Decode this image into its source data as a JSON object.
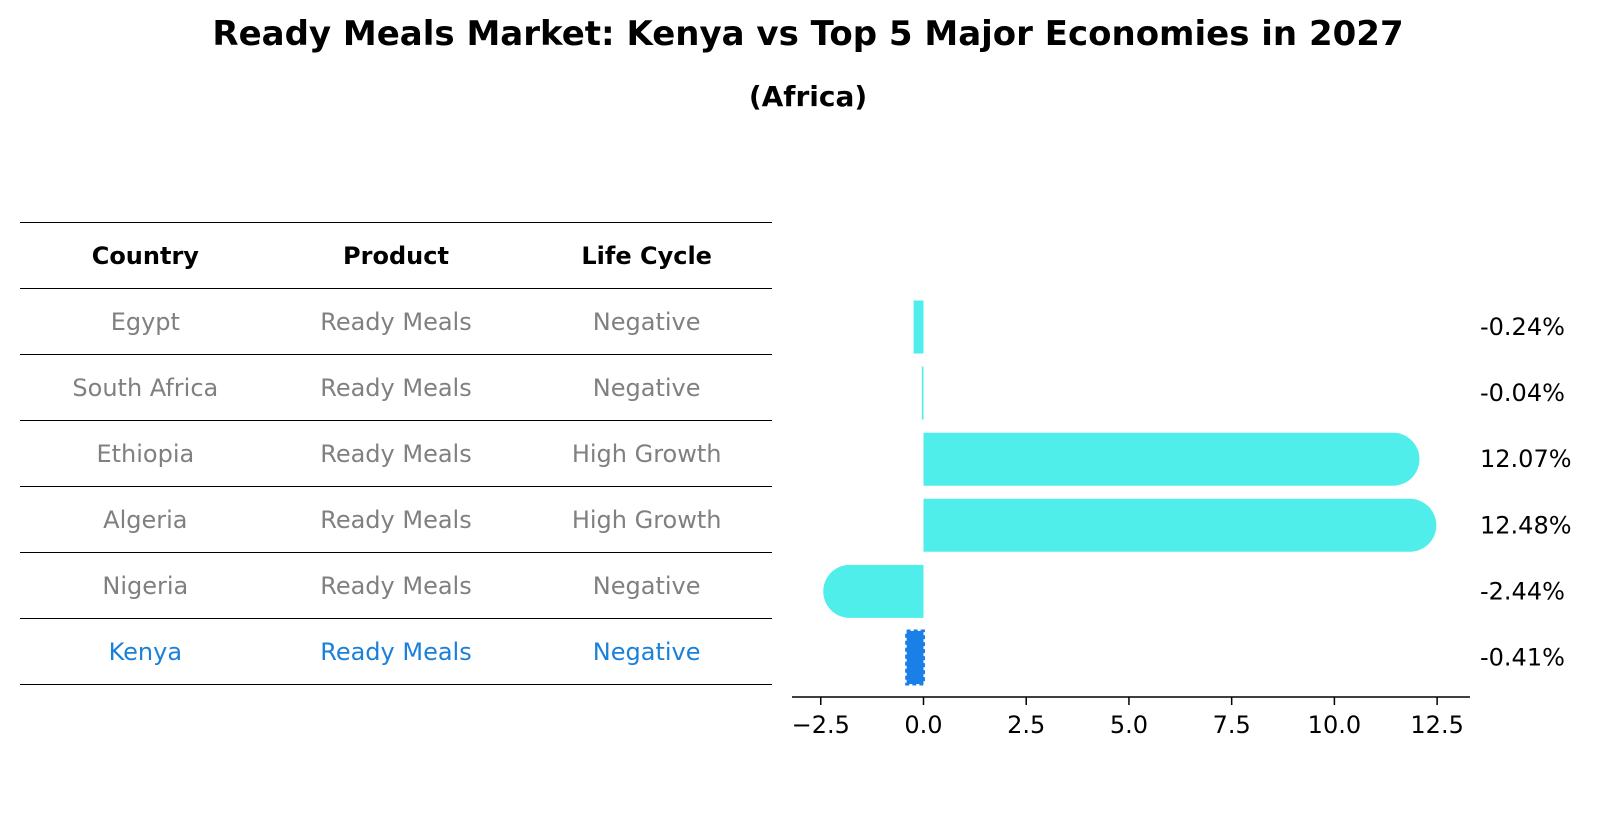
{
  "title": "Ready Meals Market: Kenya vs Top 5 Major Economies in 2027",
  "subtitle": "(Africa)",
  "table": {
    "headers": [
      "Country",
      "Product",
      "Life Cycle"
    ],
    "rows": [
      {
        "country": "Egypt",
        "product": "Ready Meals",
        "life_cycle": "Negative",
        "highlight": false
      },
      {
        "country": "South Africa",
        "product": "Ready Meals",
        "life_cycle": "Negative",
        "highlight": false
      },
      {
        "country": "Ethiopia",
        "product": "Ready Meals",
        "life_cycle": "High Growth",
        "highlight": false
      },
      {
        "country": "Algeria",
        "product": "Ready Meals",
        "life_cycle": "High Growth",
        "highlight": false
      },
      {
        "country": "Nigeria",
        "product": "Ready Meals",
        "life_cycle": "Negative",
        "highlight": false
      },
      {
        "country": "Kenya",
        "product": "Ready Meals",
        "life_cycle": "Negative",
        "highlight": true
      }
    ]
  },
  "colors": {
    "bar": "#4feeeb",
    "highlight_bar": "#1a80e8",
    "text_muted": "#808080",
    "text_highlight": "#1a80d9"
  },
  "chart_data": {
    "type": "bar",
    "orientation": "horizontal",
    "categories": [
      "Egypt",
      "South Africa",
      "Ethiopia",
      "Algeria",
      "Nigeria",
      "Kenya"
    ],
    "values": [
      -0.24,
      -0.04,
      12.07,
      12.48,
      -2.44,
      -0.41
    ],
    "value_labels": [
      "-0.24%",
      "-0.04%",
      "12.07%",
      "12.48%",
      "-2.44%",
      "-0.41%"
    ],
    "highlight_index": 5,
    "xlim": [
      -3.2,
      13.3
    ],
    "xticks": [
      -2.5,
      0.0,
      2.5,
      5.0,
      7.5,
      10.0,
      12.5
    ],
    "xtick_labels": [
      "−2.5",
      "0.0",
      "2.5",
      "5.0",
      "7.5",
      "10.0",
      "12.5"
    ],
    "grid": false
  }
}
